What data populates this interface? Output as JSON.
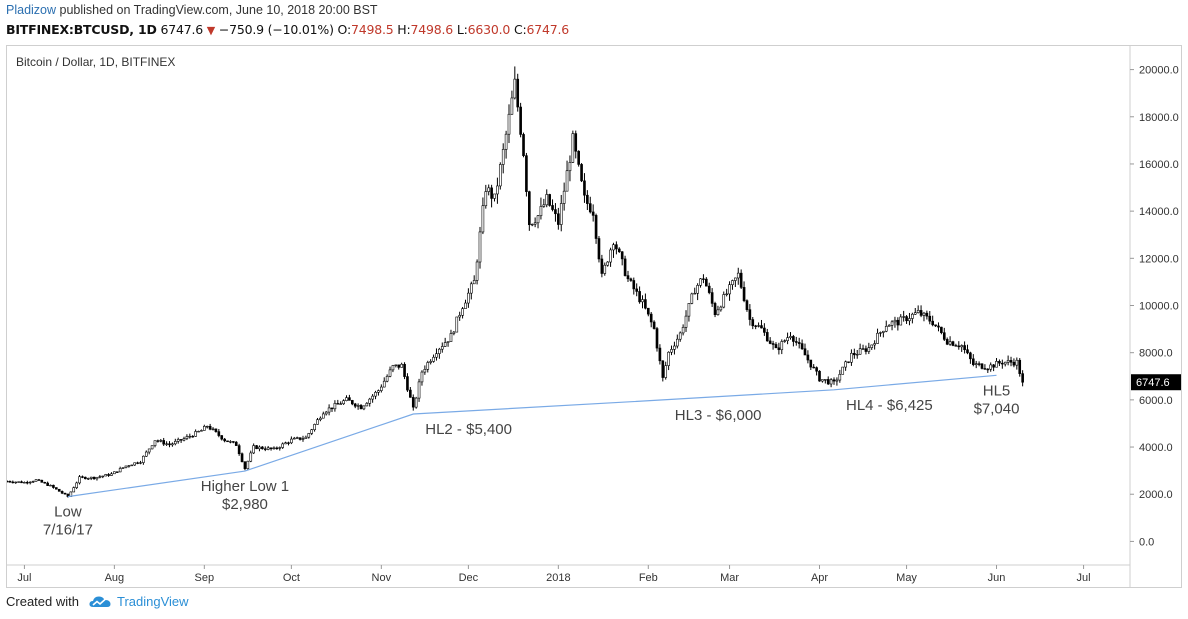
{
  "header": {
    "user": "Pladizow",
    "published": "published on TradingView.com, June 10, 2018 20:00 BST",
    "symbol": "BITFINEX:BTCUSD, 1D",
    "last": "6747.6",
    "change": "−750.9 (−10.01%)",
    "o_label": "O:",
    "o_value": "7498.5",
    "h_label": "H:",
    "h_value": "7498.6",
    "l_label": "L:",
    "l_value": "6630.0",
    "c_label": "C:",
    "c_value": "6747.6"
  },
  "footer": {
    "created_with": "Created with",
    "brand": "TradingView"
  },
  "colors": {
    "candle": "#000000",
    "trendline": "#7aaae6",
    "price_tag": "#000000",
    "publisher": "#2b6fb0",
    "down": "#c0392b"
  },
  "chart_data": {
    "type": "candlestick",
    "title": "Bitcoin / Dollar, 1D, BITFINEX",
    "y_axis_position": "right",
    "ylim": [
      -1000,
      21000
    ],
    "y_ticks": [
      0,
      2000,
      4000,
      6000,
      8000,
      10000,
      12000,
      14000,
      16000,
      18000,
      20000
    ],
    "y_tick_labels": [
      "0.0",
      "2000.0",
      "4000.0",
      "6000.0",
      "8000.0",
      "10000.0",
      "12000.0",
      "14000.0",
      "16000.0",
      "18000.0",
      "20000.0"
    ],
    "x_range": [
      "2017-06-25",
      "2018-07-17"
    ],
    "x_tick_labels": [
      {
        "date": "2017-07-01",
        "label": "Jul"
      },
      {
        "date": "2017-08-01",
        "label": "Aug"
      },
      {
        "date": "2017-09-01",
        "label": "Sep"
      },
      {
        "date": "2017-10-01",
        "label": "Oct"
      },
      {
        "date": "2017-11-01",
        "label": "Nov"
      },
      {
        "date": "2017-12-01",
        "label": "Dec"
      },
      {
        "date": "2018-01-01",
        "label": "2018"
      },
      {
        "date": "2018-02-01",
        "label": "Feb"
      },
      {
        "date": "2018-03-01",
        "label": "Mar"
      },
      {
        "date": "2018-04-01",
        "label": "Apr"
      },
      {
        "date": "2018-05-01",
        "label": "May"
      },
      {
        "date": "2018-06-01",
        "label": "Jun"
      },
      {
        "date": "2018-07-01",
        "label": "Jul"
      }
    ],
    "last_price_label": "6747.6",
    "last_price": 6747.6,
    "price_path": [
      [
        "2017-06-25",
        2550
      ],
      [
        "2017-07-01",
        2500
      ],
      [
        "2017-07-05",
        2600
      ],
      [
        "2017-07-10",
        2350
      ],
      [
        "2017-07-16",
        1900
      ],
      [
        "2017-07-20",
        2700
      ],
      [
        "2017-07-25",
        2700
      ],
      [
        "2017-07-31",
        2850
      ],
      [
        "2017-08-05",
        3200
      ],
      [
        "2017-08-10",
        3400
      ],
      [
        "2017-08-15",
        4300
      ],
      [
        "2017-08-20",
        4100
      ],
      [
        "2017-08-25",
        4350
      ],
      [
        "2017-08-31",
        4700
      ],
      [
        "2017-09-02",
        4900
      ],
      [
        "2017-09-08",
        4300
      ],
      [
        "2017-09-12",
        4100
      ],
      [
        "2017-09-15",
        3100
      ],
      [
        "2017-09-18",
        4000
      ],
      [
        "2017-09-25",
        3900
      ],
      [
        "2017-10-01",
        4300
      ],
      [
        "2017-10-06",
        4400
      ],
      [
        "2017-10-12",
        5500
      ],
      [
        "2017-10-20",
        6000
      ],
      [
        "2017-10-25",
        5700
      ],
      [
        "2017-10-31",
        6400
      ],
      [
        "2017-11-05",
        7400
      ],
      [
        "2017-11-08",
        7450
      ],
      [
        "2017-11-12",
        5600
      ],
      [
        "2017-11-15",
        7200
      ],
      [
        "2017-11-20",
        8100
      ],
      [
        "2017-11-25",
        8700
      ],
      [
        "2017-11-29",
        10000
      ],
      [
        "2017-12-03",
        11000
      ],
      [
        "2017-12-07",
        15000
      ],
      [
        "2017-12-10",
        14500
      ],
      [
        "2017-12-13",
        16500
      ],
      [
        "2017-12-17",
        19400
      ],
      [
        "2017-12-20",
        16500
      ],
      [
        "2017-12-22",
        13500
      ],
      [
        "2017-12-25",
        13800
      ],
      [
        "2017-12-28",
        14500
      ],
      [
        "2018-01-01",
        13500
      ],
      [
        "2018-01-06",
        17000
      ],
      [
        "2018-01-10",
        14500
      ],
      [
        "2018-01-13",
        14000
      ],
      [
        "2018-01-16",
        11200
      ],
      [
        "2018-01-20",
        12800
      ],
      [
        "2018-01-25",
        11100
      ],
      [
        "2018-01-30",
        10100
      ],
      [
        "2018-02-03",
        9000
      ],
      [
        "2018-02-06",
        6900
      ],
      [
        "2018-02-08",
        8000
      ],
      [
        "2018-02-12",
        8800
      ],
      [
        "2018-02-17",
        10700
      ],
      [
        "2018-02-20",
        11200
      ],
      [
        "2018-02-24",
        9700
      ],
      [
        "2018-03-04",
        11300
      ],
      [
        "2018-03-08",
        9400
      ],
      [
        "2018-03-12",
        9000
      ],
      [
        "2018-03-17",
        8100
      ],
      [
        "2018-03-22",
        8800
      ],
      [
        "2018-03-27",
        7900
      ],
      [
        "2018-04-01",
        6900
      ],
      [
        "2018-04-06",
        6700
      ],
      [
        "2018-04-12",
        7900
      ],
      [
        "2018-04-18",
        8200
      ],
      [
        "2018-04-24",
        9200
      ],
      [
        "2018-04-28",
        9300
      ],
      [
        "2018-05-05",
        9700
      ],
      [
        "2018-05-10",
        9300
      ],
      [
        "2018-05-15",
        8500
      ],
      [
        "2018-05-20",
        8300
      ],
      [
        "2018-05-24",
        7500
      ],
      [
        "2018-05-29",
        7400
      ],
      [
        "2018-06-03",
        7600
      ],
      [
        "2018-06-08",
        7600
      ],
      [
        "2018-06-10",
        6750
      ]
    ],
    "trendline": [
      [
        "2017-07-16",
        1900
      ],
      [
        "2017-09-15",
        2980
      ],
      [
        "2017-11-12",
        5400
      ],
      [
        "2018-02-06",
        6000
      ],
      [
        "2018-04-06",
        6425
      ],
      [
        "2018-06-01",
        7040
      ]
    ],
    "annotations": [
      {
        "date": "2017-07-16",
        "y": 1900,
        "lines": [
          "Low",
          "7/16/17"
        ]
      },
      {
        "date": "2017-09-15",
        "y": 2980,
        "lines": [
          "Higher Low 1",
          "$2,980"
        ]
      },
      {
        "date": "2017-11-12",
        "y": 5400,
        "lines": [
          "HL2 - $5,400"
        ]
      },
      {
        "date": "2018-02-06",
        "y": 6000,
        "lines": [
          "HL3 - $6,000"
        ]
      },
      {
        "date": "2018-04-06",
        "y": 6425,
        "lines": [
          "HL4 - $6,425"
        ]
      },
      {
        "date": "2018-06-01",
        "y": 7040,
        "lines": [
          "HL5",
          "$7,040"
        ]
      }
    ]
  }
}
